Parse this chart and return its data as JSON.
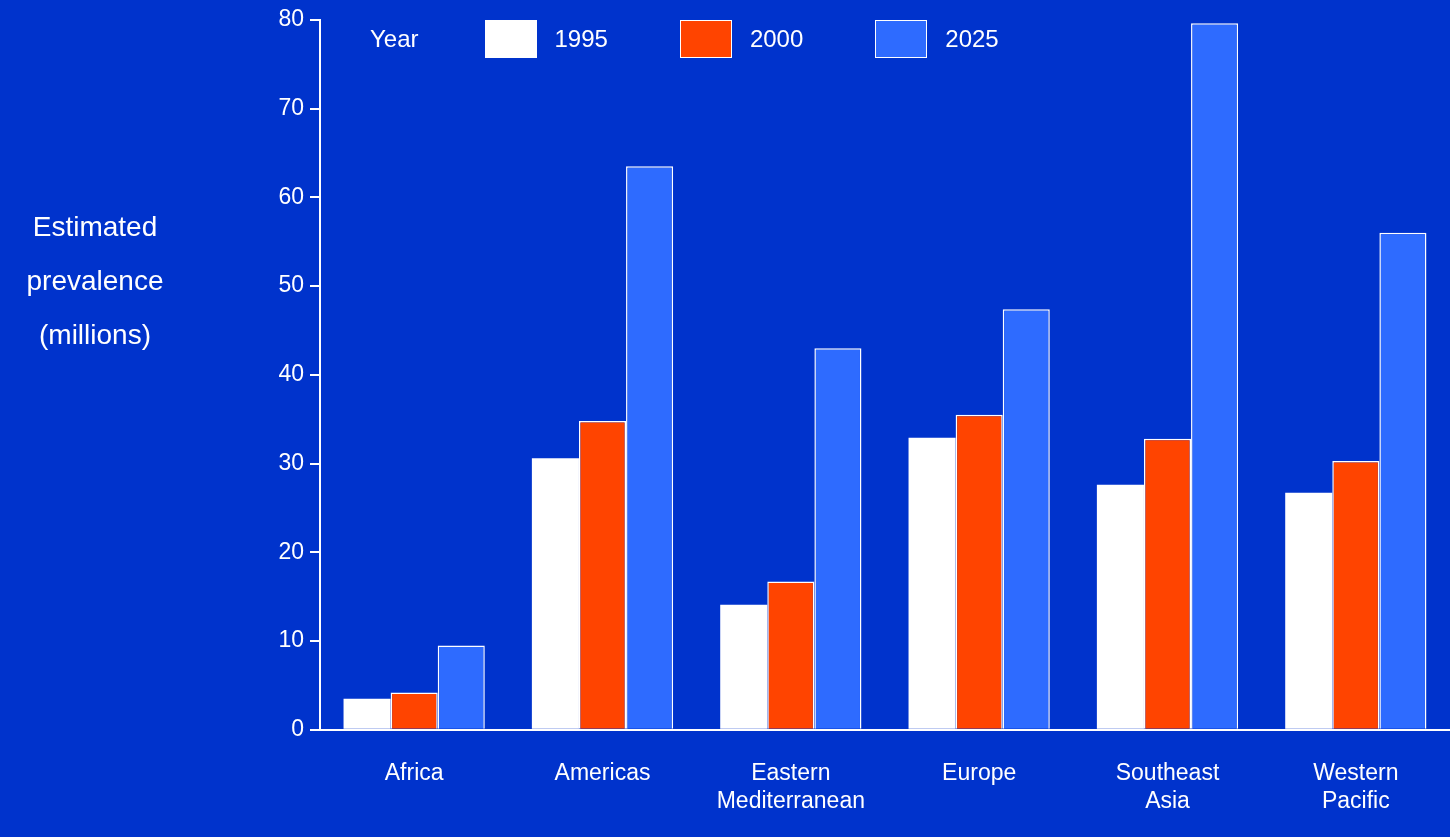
{
  "chart_data": {
    "type": "bar",
    "ylabel": "Estimated prevalence (millions)",
    "legend_title": "Year",
    "legend": "top",
    "categories": [
      "Africa",
      "Americas",
      "Eastern Mediterranean",
      "Europe",
      "Southeast Asia",
      "Western Pacific"
    ],
    "series": [
      {
        "name": "1995",
        "color": "#ffffff",
        "values": [
          3.5,
          30.6,
          14.1,
          32.9,
          27.6,
          26.7
        ]
      },
      {
        "name": "2000",
        "color": "#ff4400",
        "values": [
          4.2,
          34.8,
          16.7,
          35.5,
          32.8,
          30.3
        ]
      },
      {
        "name": "2025",
        "color": "#2e6bff",
        "values": [
          9.5,
          63.5,
          43.0,
          47.4,
          79.6,
          56.0
        ]
      }
    ],
    "ylim": [
      0,
      80
    ],
    "yticks": [
      0,
      10,
      20,
      30,
      40,
      50,
      60,
      70,
      80
    ]
  }
}
